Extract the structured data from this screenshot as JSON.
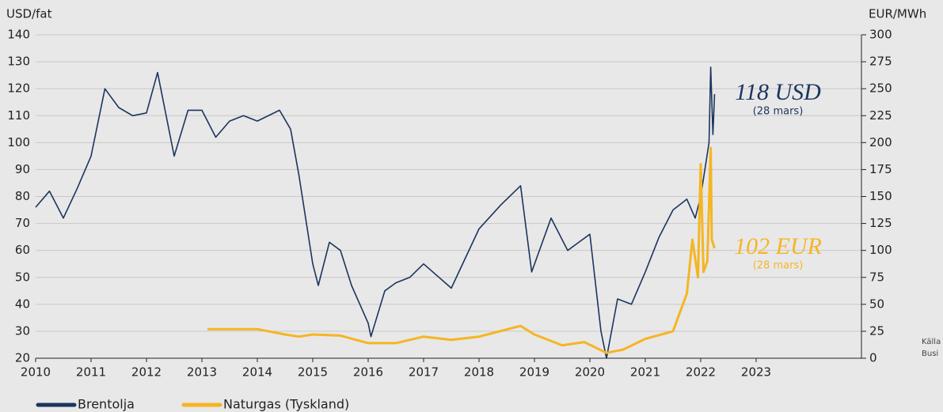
{
  "chart_data": {
    "type": "line",
    "y_label": "USD/fat",
    "y2_label": "EUR/MWh",
    "xlim": [
      2010,
      2024.9
    ],
    "xticks": [
      2010,
      2011,
      2012,
      2013,
      2014,
      2015,
      2016,
      2017,
      2018,
      2019,
      2020,
      2021,
      2022,
      2023
    ],
    "ylim": [
      20,
      140
    ],
    "yticks": [
      20,
      30,
      40,
      50,
      60,
      70,
      80,
      90,
      100,
      110,
      120,
      130,
      140
    ],
    "y2lim": [
      0,
      300
    ],
    "y2ticks": [
      0,
      25,
      50,
      75,
      100,
      125,
      150,
      175,
      200,
      225,
      250,
      275,
      300
    ],
    "grid": true,
    "legend": "bottom-left",
    "series": [
      {
        "name": "Brentolja",
        "color": "#1c355e",
        "x": [
          2010.0,
          2010.25,
          2010.5,
          2010.75,
          2011.0,
          2011.25,
          2011.5,
          2011.75,
          2012.0,
          2012.2,
          2012.5,
          2012.75,
          2013.0,
          2013.25,
          2013.5,
          2013.75,
          2014.0,
          2014.4,
          2014.6,
          2014.75,
          2015.0,
          2015.1,
          2015.3,
          2015.5,
          2015.7,
          2016.0,
          2016.05,
          2016.3,
          2016.5,
          2016.75,
          2017.0,
          2017.5,
          2017.75,
          2018.0,
          2018.4,
          2018.75,
          2018.95,
          2019.3,
          2019.6,
          2019.8,
          2020.0,
          2020.2,
          2020.3,
          2020.5,
          2020.75,
          2021.0,
          2021.25,
          2021.5,
          2021.75,
          2021.9,
          2022.0,
          2022.15,
          2022.18,
          2022.22,
          2022.25
        ],
        "values": [
          76,
          82,
          72,
          83,
          95,
          120,
          113,
          110,
          111,
          126,
          95,
          112,
          112,
          102,
          108,
          110,
          108,
          112,
          105,
          88,
          55,
          47,
          63,
          60,
          47,
          33,
          28,
          45,
          48,
          50,
          55,
          46,
          57,
          68,
          77,
          84,
          52,
          72,
          60,
          63,
          66,
          30,
          20,
          42,
          40,
          52,
          65,
          75,
          79,
          72,
          80,
          100,
          128,
          103,
          118
        ]
      },
      {
        "name": "Naturgas (Tyskland)",
        "color": "#f5b523",
        "axis": "y2",
        "x": [
          2013.1,
          2013.5,
          2014.0,
          2014.5,
          2014.75,
          2015.0,
          2015.5,
          2016.0,
          2016.5,
          2017.0,
          2017.5,
          2018.0,
          2018.75,
          2019.0,
          2019.5,
          2019.9,
          2020.3,
          2020.6,
          2021.0,
          2021.5,
          2021.75,
          2021.85,
          2021.95,
          2022.0,
          2022.05,
          2022.12,
          2022.18,
          2022.2,
          2022.25
        ],
        "values": [
          27,
          27,
          27,
          22,
          20,
          22,
          21,
          14,
          14,
          20,
          17,
          20,
          30,
          22,
          12,
          15,
          5,
          8,
          18,
          25,
          60,
          110,
          75,
          180,
          80,
          90,
          195,
          110,
          102
        ]
      }
    ],
    "annotations": [
      {
        "text": "118 USD",
        "note": "(28 mars)",
        "color": "#1c355e",
        "x": 2022.25,
        "y": 118
      },
      {
        "text": "102 EUR",
        "note": "(28 mars)",
        "color": "#f5b523",
        "x": 2022.25,
        "y": 102,
        "axis": "y2"
      }
    ],
    "source": [
      "Källa",
      "Busi"
    ]
  }
}
